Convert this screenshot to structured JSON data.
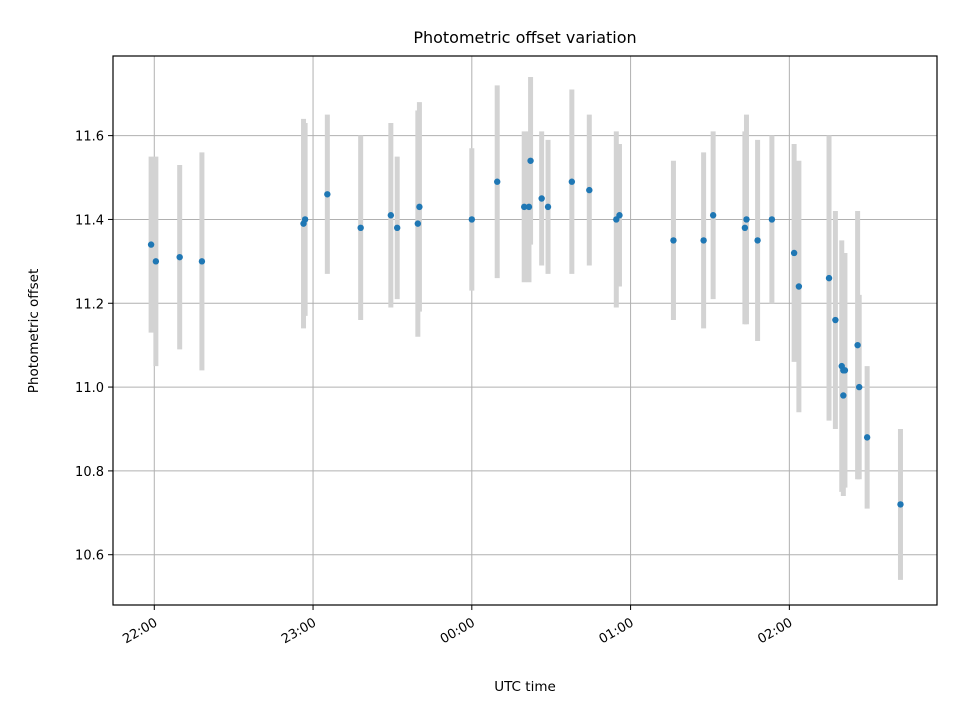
{
  "chart_data": {
    "type": "scatter",
    "title": "Photometric offset variation",
    "xlabel": "UTC time",
    "ylabel": "Photometric offset",
    "x_unit": "UTC time (hours relative to 00:00)",
    "x_ticks": [
      {
        "value": -2,
        "label": "22:00"
      },
      {
        "value": -1,
        "label": "23:00"
      },
      {
        "value": 0,
        "label": "00:00"
      },
      {
        "value": 1,
        "label": "01:00"
      },
      {
        "value": 2,
        "label": "02:00"
      }
    ],
    "y_ticks": [
      10.6,
      10.8,
      11.0,
      11.2,
      11.4,
      11.6
    ],
    "xlim": [
      -2.26,
      2.93
    ],
    "ylim": [
      10.48,
      11.79
    ],
    "grid": true,
    "colors": {
      "points": "#1f77b4",
      "errorbars": "#d3d3d3",
      "grid": "#b0b0b0"
    },
    "points": [
      {
        "x": -2.02,
        "y": 11.34,
        "yerr": 0.21
      },
      {
        "x": -1.99,
        "y": 11.3,
        "yerr": 0.25
      },
      {
        "x": -1.84,
        "y": 11.31,
        "yerr": 0.22
      },
      {
        "x": -1.7,
        "y": 11.3,
        "yerr": 0.26
      },
      {
        "x": -1.06,
        "y": 11.39,
        "yerr": 0.25
      },
      {
        "x": -1.05,
        "y": 11.4,
        "yerr": 0.23
      },
      {
        "x": -0.91,
        "y": 11.46,
        "yerr": 0.19
      },
      {
        "x": -0.7,
        "y": 11.38,
        "yerr": 0.22
      },
      {
        "x": -0.51,
        "y": 11.41,
        "yerr": 0.22
      },
      {
        "x": -0.47,
        "y": 11.38,
        "yerr": 0.17
      },
      {
        "x": -0.34,
        "y": 11.39,
        "yerr": 0.27
      },
      {
        "x": -0.33,
        "y": 11.43,
        "yerr": 0.25
      },
      {
        "x": 0.0,
        "y": 11.4,
        "yerr": 0.17
      },
      {
        "x": 0.16,
        "y": 11.49,
        "yerr": 0.23
      },
      {
        "x": 0.33,
        "y": 11.43,
        "yerr": 0.18
      },
      {
        "x": 0.36,
        "y": 11.43,
        "yerr": 0.18
      },
      {
        "x": 0.37,
        "y": 11.54,
        "yerr": 0.2
      },
      {
        "x": 0.44,
        "y": 11.45,
        "yerr": 0.16
      },
      {
        "x": 0.48,
        "y": 11.43,
        "yerr": 0.16
      },
      {
        "x": 0.63,
        "y": 11.49,
        "yerr": 0.22
      },
      {
        "x": 0.74,
        "y": 11.47,
        "yerr": 0.18
      },
      {
        "x": 0.91,
        "y": 11.4,
        "yerr": 0.21
      },
      {
        "x": 0.93,
        "y": 11.41,
        "yerr": 0.17
      },
      {
        "x": 1.27,
        "y": 11.35,
        "yerr": 0.19
      },
      {
        "x": 1.46,
        "y": 11.35,
        "yerr": 0.21
      },
      {
        "x": 1.52,
        "y": 11.41,
        "yerr": 0.2
      },
      {
        "x": 1.72,
        "y": 11.38,
        "yerr": 0.23
      },
      {
        "x": 1.73,
        "y": 11.4,
        "yerr": 0.25
      },
      {
        "x": 1.8,
        "y": 11.35,
        "yerr": 0.24
      },
      {
        "x": 1.89,
        "y": 11.4,
        "yerr": 0.2
      },
      {
        "x": 2.03,
        "y": 11.32,
        "yerr": 0.26
      },
      {
        "x": 2.06,
        "y": 11.24,
        "yerr": 0.3
      },
      {
        "x": 2.25,
        "y": 11.26,
        "yerr": 0.34
      },
      {
        "x": 2.29,
        "y": 11.16,
        "yerr": 0.26
      },
      {
        "x": 2.33,
        "y": 11.05,
        "yerr": 0.3
      },
      {
        "x": 2.34,
        "y": 11.04,
        "yerr": 0.27
      },
      {
        "x": 2.34,
        "y": 10.98,
        "yerr": 0.24
      },
      {
        "x": 2.35,
        "y": 11.04,
        "yerr": 0.28
      },
      {
        "x": 2.43,
        "y": 11.1,
        "yerr": 0.32
      },
      {
        "x": 2.44,
        "y": 11.0,
        "yerr": 0.22
      },
      {
        "x": 2.49,
        "y": 10.88,
        "yerr": 0.17
      },
      {
        "x": 2.7,
        "y": 10.72,
        "yerr": 0.18
      }
    ]
  }
}
